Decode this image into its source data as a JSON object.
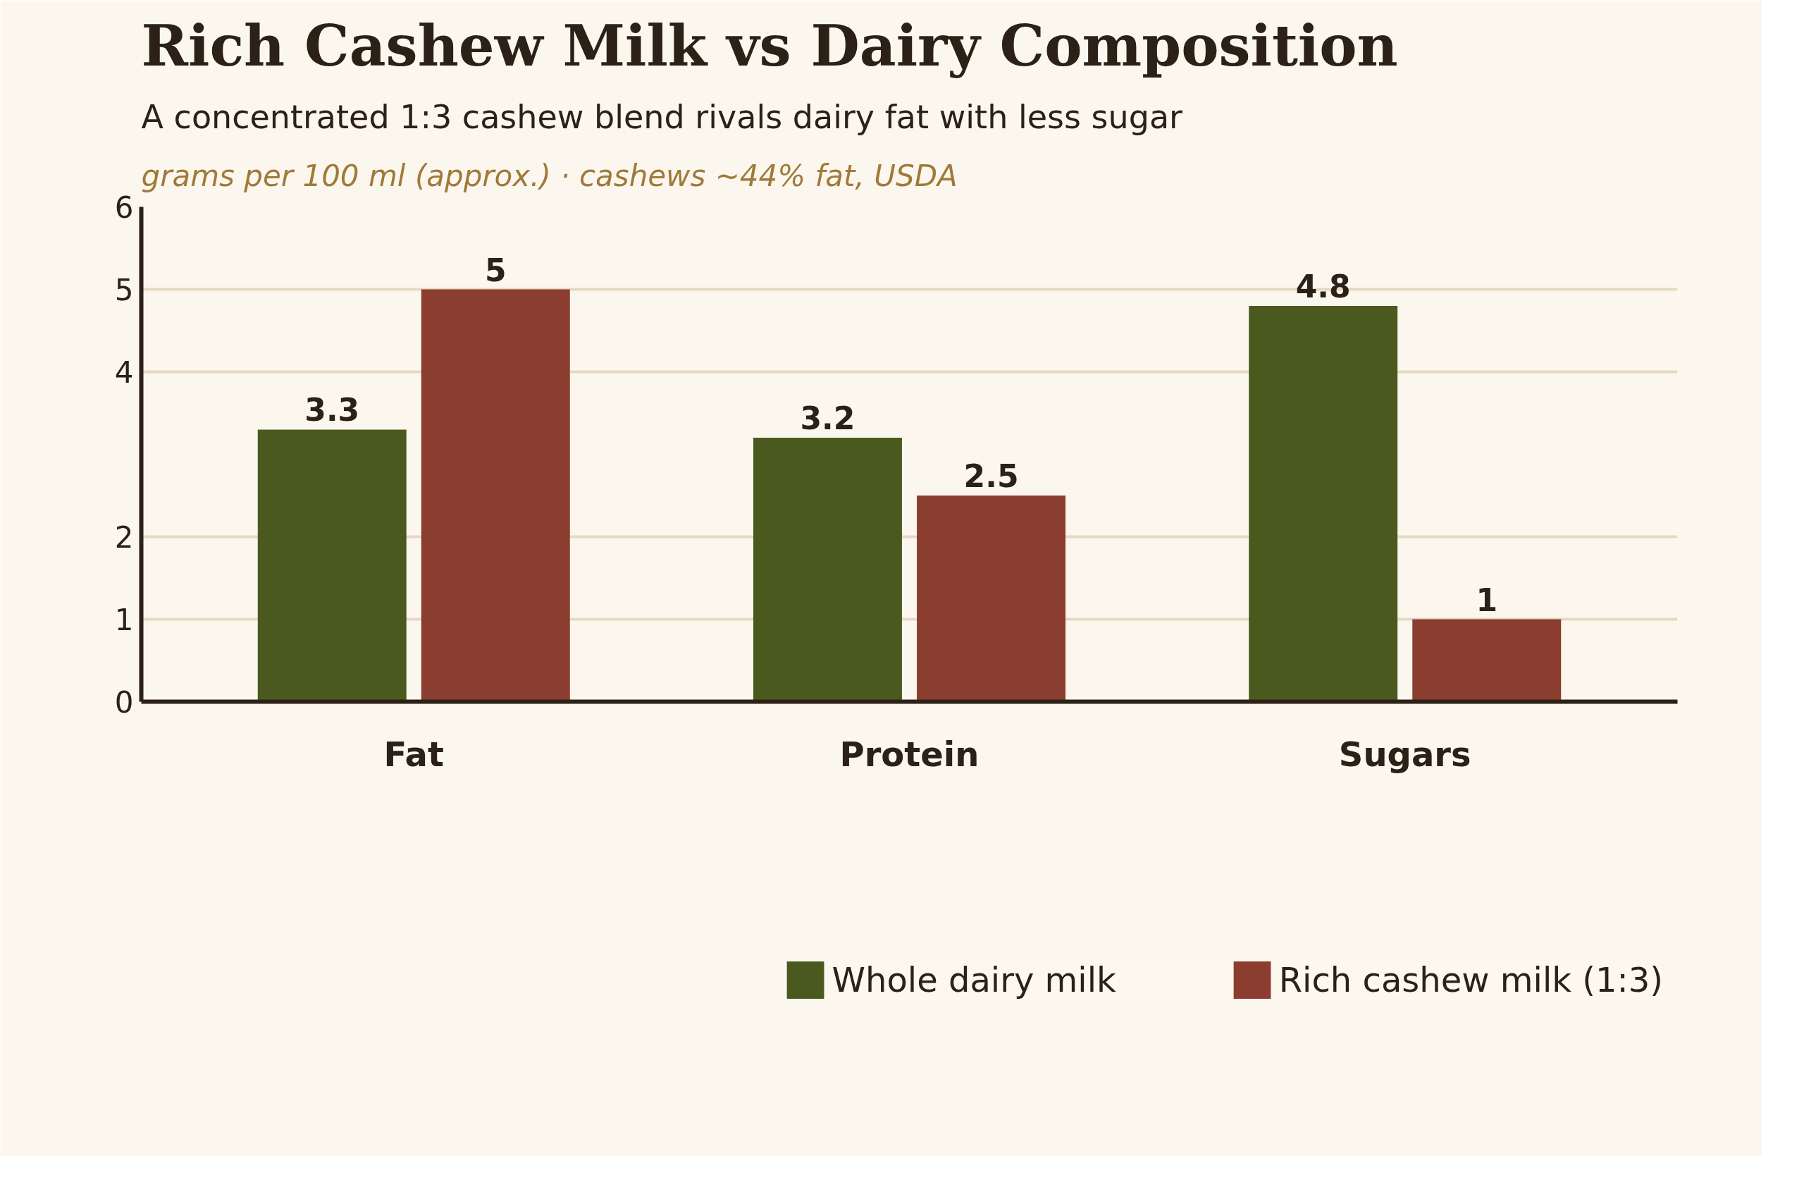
{
  "chart_data": {
    "type": "bar",
    "title": "Rich Cashew Milk vs Dairy Composition",
    "subtitle": "A concentrated 1:3 cashew blend rivals dairy fat with less sugar",
    "annotations": [
      "grams per 100 ml (approx.) · cashews ~44% fat, USDA"
    ],
    "categories": [
      "Fat",
      "Protein",
      "Sugars"
    ],
    "series": [
      {
        "name": "Whole dairy milk",
        "color": "#4a5a1f",
        "values": [
          3.3,
          3.2,
          4.8
        ]
      },
      {
        "name": "Rich cashew milk (1:3)",
        "color": "#8b3d2f",
        "values": [
          5,
          2.5,
          1
        ]
      }
    ],
    "ylim": [
      0,
      6
    ],
    "yticks": [
      0,
      1,
      2,
      4,
      5,
      6
    ],
    "grid": "y",
    "legend": "bottom",
    "data_labels": true
  }
}
